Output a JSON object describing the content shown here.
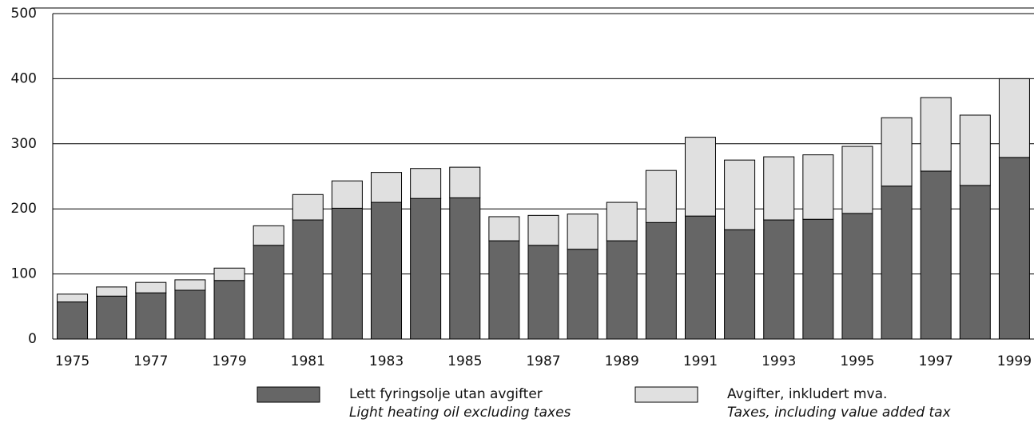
{
  "chart_data": {
    "type": "stacked_bar",
    "categories": [
      "1975",
      null,
      "1977",
      null,
      "1979",
      null,
      "1981",
      null,
      "1983",
      null,
      "1985",
      null,
      "1987",
      null,
      "1989",
      null,
      "1991",
      null,
      "1993",
      null,
      "1995",
      null,
      "1997",
      null,
      "1999"
    ],
    "series": [
      {
        "name": "Lett fyringsolje utan avgifter",
        "subtitle": "Light heating oil excluding taxes",
        "color": "#666666",
        "values": [
          57,
          66,
          71,
          75,
          90,
          144,
          183,
          201,
          210,
          216,
          217,
          151,
          144,
          138,
          151,
          179,
          189,
          168,
          183,
          184,
          193,
          235,
          258,
          236,
          279
        ]
      },
      {
        "name": "Avgifter, inkludert mva.",
        "subtitle": "Taxes, including value added tax",
        "color": "#e0e0e0",
        "values": [
          12,
          14,
          16,
          16,
          19,
          30,
          39,
          42,
          46,
          46,
          47,
          37,
          46,
          54,
          59,
          80,
          121,
          107,
          97,
          99,
          103,
          105,
          113,
          108,
          121
        ]
      }
    ],
    "ylim": [
      0,
      500
    ],
    "yticks": [
      0,
      100,
      200,
      300,
      400,
      500
    ],
    "grid": true
  }
}
